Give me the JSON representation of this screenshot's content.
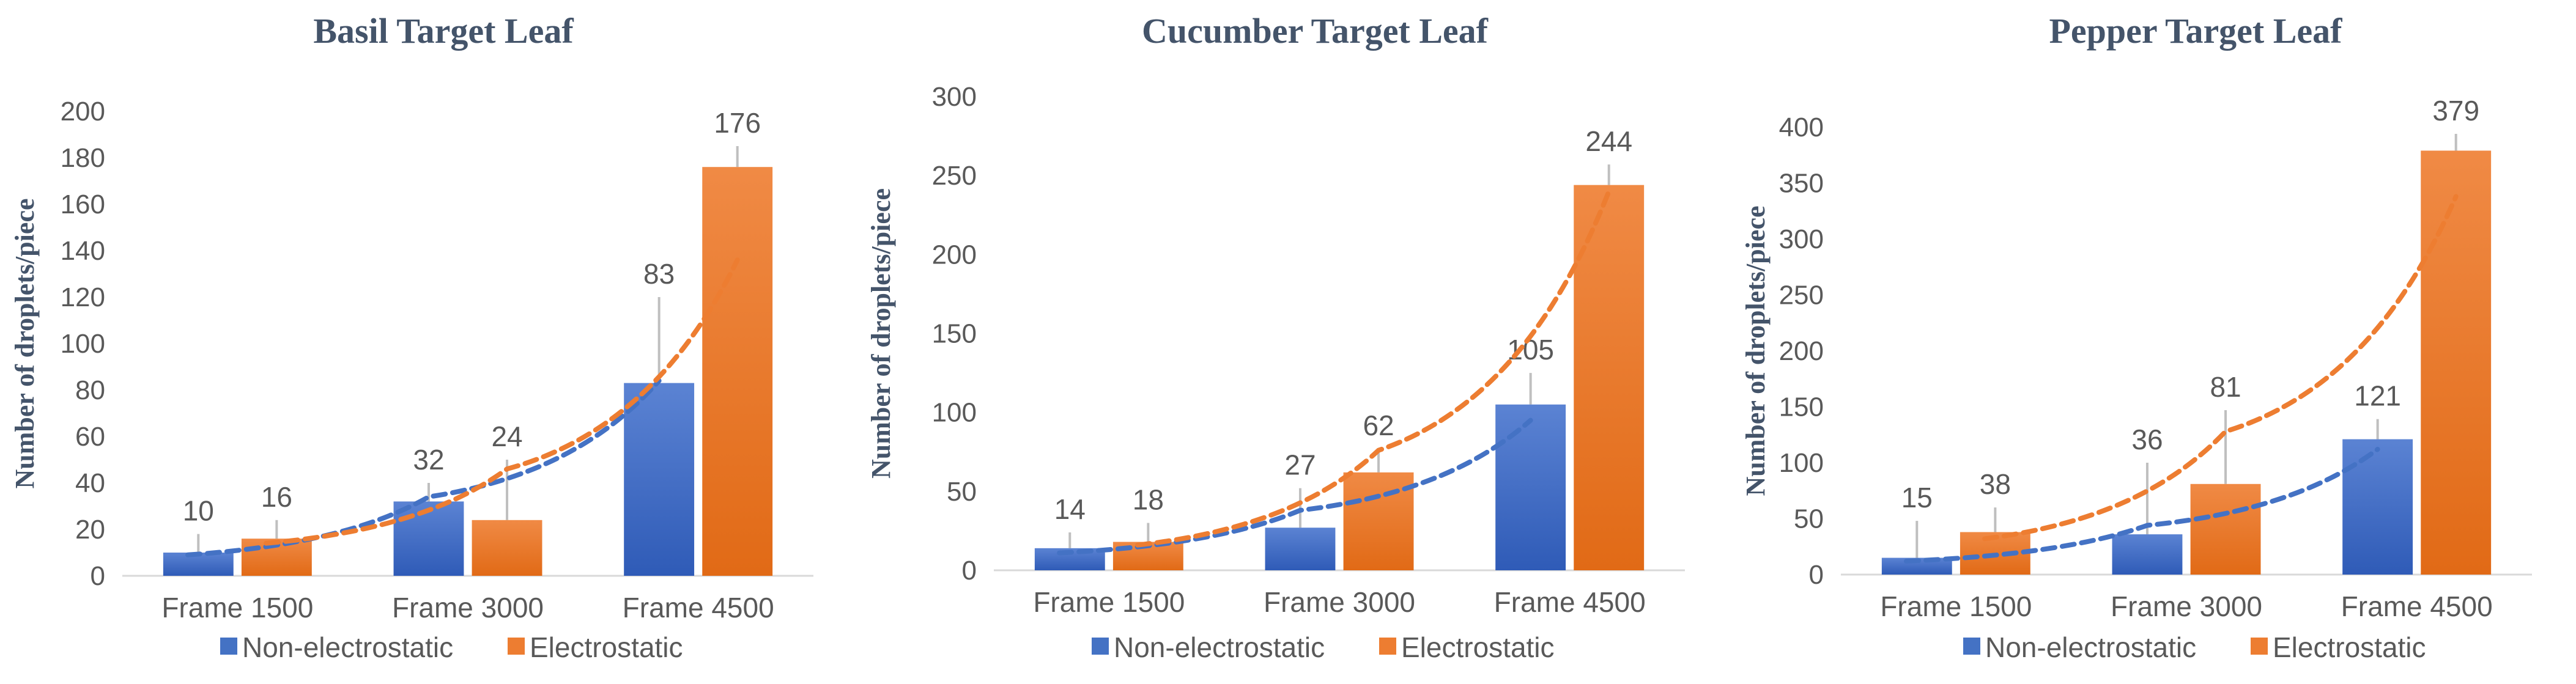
{
  "colors": {
    "non_electrostatic": "#4472c4",
    "non_electrostatic_light": "#5b83d3",
    "non_electrostatic_dark": "#2f5bb7",
    "electrostatic": "#ed7d31",
    "electrostatic_light": "#f08a45",
    "electrostatic_dark": "#e16a16",
    "error_bar": "#bfbfbf",
    "axis": "#d9d9d9"
  },
  "chart_data": [
    {
      "type": "bar",
      "title": "Basil Target Leaf",
      "ylabel": "Number of droplets/piece",
      "xlabel": "",
      "categories": [
        "Frame 1500",
        "Frame 3000",
        "Frame 4500"
      ],
      "ylim": [
        0,
        200
      ],
      "yticks": [
        0,
        20,
        40,
        60,
        80,
        100,
        120,
        140,
        160,
        180,
        200
      ],
      "series": [
        {
          "name": "Non-electrostatic",
          "values": [
            10,
            32,
            83
          ],
          "labels": [
            "10",
            "32",
            "83"
          ],
          "error": [
            8,
            8,
            37
          ]
        },
        {
          "name": "Electrostatic",
          "values": [
            16,
            24,
            176
          ],
          "labels": [
            "16",
            "24",
            "176"
          ],
          "error": [
            8,
            26,
            9
          ]
        }
      ],
      "trendlines": [
        {
          "series": "Non-electrostatic",
          "style": "dashed",
          "values": [
            9,
            34,
            84
          ]
        },
        {
          "series": "Electrostatic",
          "style": "dashed",
          "values": [
            14,
            46,
            136
          ]
        }
      ],
      "legend": "bottom"
    },
    {
      "type": "bar",
      "title": "Cucumber Target Leaf",
      "ylabel": "Number of droplets/piece",
      "xlabel": "",
      "categories": [
        "Frame 1500",
        "Frame 3000",
        "Frame 4500"
      ],
      "ylim": [
        0,
        300
      ],
      "yticks": [
        0,
        50,
        100,
        150,
        200,
        250,
        300
      ],
      "series": [
        {
          "name": "Non-electrostatic",
          "values": [
            14,
            27,
            105
          ],
          "labels": [
            "14",
            "27",
            "105"
          ],
          "error": [
            10,
            25,
            20
          ]
        },
        {
          "name": "Electrostatic",
          "values": [
            18,
            62,
            244
          ],
          "labels": [
            "18",
            "62",
            "244"
          ],
          "error": [
            12,
            15,
            13
          ]
        }
      ],
      "trendlines": [
        {
          "series": "Non-electrostatic",
          "style": "dashed",
          "values": [
            11,
            38,
            95
          ]
        },
        {
          "series": "Electrostatic",
          "style": "dashed",
          "values": [
            16,
            76,
            240
          ]
        }
      ],
      "legend": "bottom"
    },
    {
      "type": "bar",
      "title": "Pepper Target Leaf",
      "ylabel": "Number of droplets/piece",
      "xlabel": "",
      "categories": [
        "Frame 1500",
        "Frame 3000",
        "Frame 4500"
      ],
      "ylim": [
        0,
        400
      ],
      "yticks": [
        0,
        50,
        100,
        150,
        200,
        250,
        300,
        350,
        400
      ],
      "series": [
        {
          "name": "Non-electrostatic",
          "values": [
            15,
            36,
            121
          ],
          "labels": [
            "15",
            "36",
            "121"
          ],
          "error": [
            33,
            64,
            18
          ]
        },
        {
          "name": "Electrostatic",
          "values": [
            38,
            81,
            379
          ],
          "labels": [
            "38",
            "81",
            "379"
          ],
          "error": [
            22,
            66,
            15
          ]
        }
      ],
      "trendlines": [
        {
          "series": "Non-electrostatic",
          "style": "dashed",
          "values": [
            12,
            44,
            112
          ]
        },
        {
          "series": "Electrostatic",
          "style": "dashed",
          "values": [
            32,
            128,
            338
          ]
        }
      ],
      "legend": "bottom"
    }
  ]
}
